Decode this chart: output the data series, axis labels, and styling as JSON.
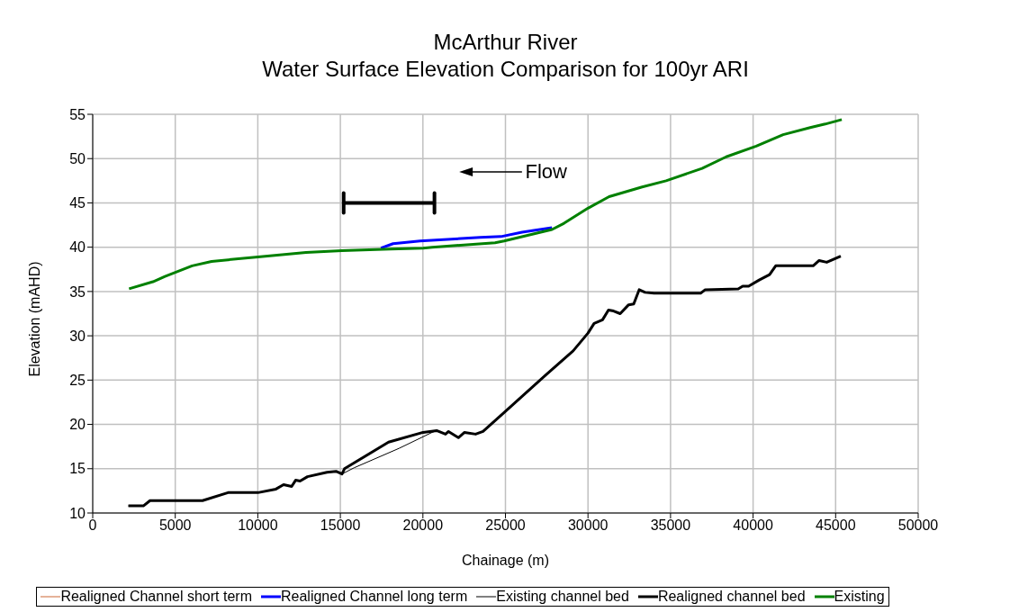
{
  "chart_data": {
    "type": "line",
    "title": "McArthur River\nWater Surface Elevation Comparison for 100yr ARI",
    "xlabel": "Chainage (m)",
    "ylabel": "Elevation (mAHD)",
    "xlim": [
      0,
      50000
    ],
    "xticks": [
      0,
      5000,
      10000,
      15000,
      20000,
      25000,
      30000,
      35000,
      40000,
      45000,
      50000
    ],
    "ylim": [
      10,
      55
    ],
    "yticks": [
      10,
      15,
      20,
      25,
      30,
      35,
      40,
      45,
      50,
      55
    ],
    "grid": true,
    "legend": "bottom",
    "marker": "none",
    "line_style": "solid",
    "annotations": [
      "Flow"
    ],
    "series": [
      {
        "name": "Realigned Channel short term",
        "color": "#cc6633"
      },
      {
        "name": "Realigned Channel long term",
        "color": "#0000ff",
        "x": [
          17460,
          18190,
          19830,
          23470,
          24730,
          26010,
          27820
        ],
        "values": [
          39.9,
          40.4,
          40.7,
          41.1,
          41.2,
          41.7,
          42.2
        ]
      },
      {
        "name": "Existing channel bed",
        "color": "#000000",
        "x": [
          2160,
          3070,
          3470,
          6650,
          8200,
          10010,
          11100,
          11560,
          12050,
          12290,
          12560,
          13010,
          14190,
          14740,
          15100,
          15830,
          18560,
          20560,
          20830,
          21370,
          21550,
          22150,
          22520,
          23190,
          23640,
          25010,
          27460,
          29100,
          30000,
          30370,
          30880,
          31240,
          31550,
          31950,
          32460,
          32770,
          33100,
          33460,
          34000,
          36820,
          37100,
          39100,
          39370,
          39730,
          40370,
          41000,
          41370,
          43640,
          44000,
          44460,
          45310
        ],
        "values": [
          10.8,
          10.8,
          11.4,
          11.4,
          12.3,
          12.3,
          12.7,
          13.2,
          13.0,
          13.7,
          13.6,
          14.1,
          14.6,
          14.7,
          14.4,
          15.1,
          17.3,
          19.1,
          19.3,
          18.9,
          19.2,
          18.5,
          19.1,
          18.9,
          19.2,
          21.5,
          25.6,
          28.3,
          30.3,
          31.4,
          31.8,
          32.9,
          32.8,
          32.5,
          33.5,
          33.6,
          35.2,
          34.9,
          34.8,
          34.8,
          35.2,
          35.3,
          35.6,
          35.6,
          36.3,
          36.9,
          37.9,
          37.9,
          38.5,
          38.3,
          39.0
        ]
      },
      {
        "name": "Realigned channel bed",
        "color": "#000000",
        "x": [
          2160,
          3070,
          3470,
          6650,
          8200,
          10010,
          11100,
          11560,
          12050,
          12290,
          12560,
          13010,
          14190,
          14740,
          15100,
          15250,
          17920,
          20010,
          20830,
          21370,
          21550,
          22150,
          22520,
          23190,
          23640,
          25010,
          27460,
          29100,
          30000,
          30370,
          30880,
          31240,
          31550,
          31950,
          32460,
          32770,
          33100,
          33460,
          34000,
          36820,
          37100,
          39100,
          39370,
          39730,
          40370,
          41000,
          41370,
          43640,
          44000,
          44460,
          45310
        ],
        "values": [
          10.8,
          10.8,
          11.4,
          11.4,
          12.3,
          12.3,
          12.7,
          13.2,
          13.0,
          13.7,
          13.6,
          14.1,
          14.6,
          14.7,
          14.4,
          15.0,
          18.0,
          19.1,
          19.3,
          18.9,
          19.2,
          18.5,
          19.1,
          18.9,
          19.2,
          21.5,
          25.6,
          28.3,
          30.3,
          31.4,
          31.8,
          32.9,
          32.8,
          32.5,
          33.5,
          33.6,
          35.2,
          34.9,
          34.8,
          34.8,
          35.2,
          35.3,
          35.6,
          35.6,
          36.3,
          36.9,
          37.9,
          37.9,
          38.5,
          38.3,
          39.0
        ]
      },
      {
        "name": "Existing",
        "color": "#008000",
        "x": [
          2200,
          3650,
          4380,
          6020,
          7200,
          10010,
          12920,
          15100,
          18010,
          20010,
          20560,
          24370,
          24920,
          27820,
          28550,
          30000,
          31280,
          33280,
          34730,
          36910,
          38370,
          40190,
          41820,
          43460,
          44370,
          45370
        ],
        "values": [
          35.3,
          36.1,
          36.7,
          37.9,
          38.4,
          38.9,
          39.4,
          39.6,
          39.8,
          39.9,
          40.0,
          40.5,
          40.7,
          42.0,
          42.7,
          44.4,
          45.7,
          46.8,
          47.5,
          48.9,
          50.2,
          51.4,
          52.7,
          53.5,
          53.9,
          54.4
        ]
      }
    ]
  }
}
